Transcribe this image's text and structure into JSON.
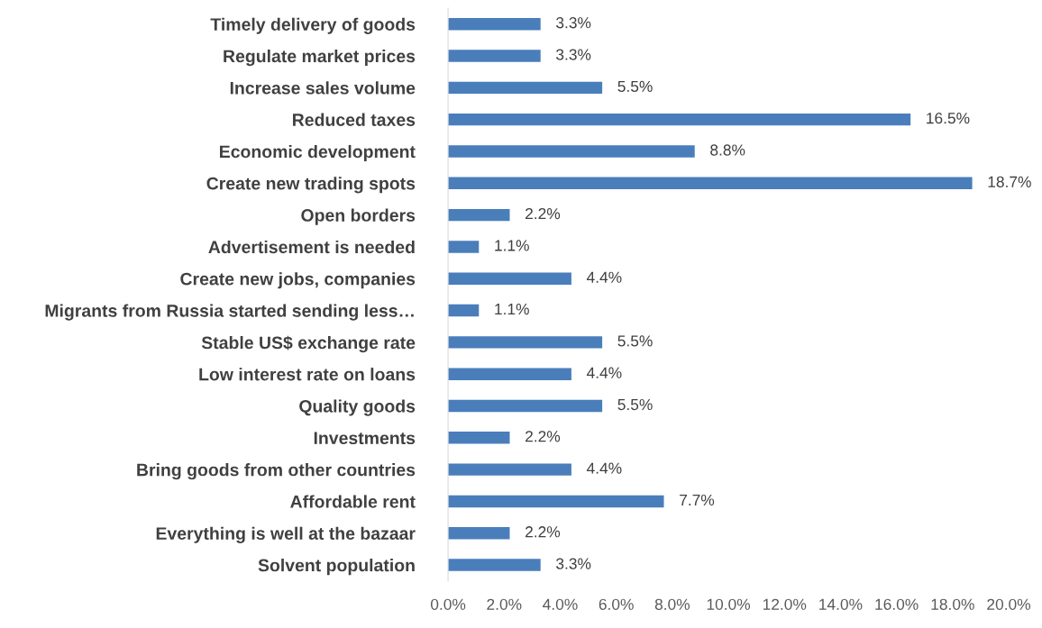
{
  "chart_data": {
    "type": "bar",
    "orientation": "horizontal",
    "categories": [
      "Timely delivery of goods",
      "Regulate market prices",
      "Increase sales volume",
      "Reduced taxes",
      "Economic development",
      "Create new trading spots",
      "Open borders",
      "Advertisement is needed",
      "Create new jobs, companies",
      "Migrants from Russia started sending less…",
      "Stable US$ exchange rate",
      "Low interest rate on loans",
      "Quality goods",
      "Investments",
      "Bring goods from other countries",
      "Affordable rent",
      "Everything is well at the bazaar",
      "Solvent population"
    ],
    "values": [
      3.3,
      3.3,
      5.5,
      16.5,
      8.8,
      18.7,
      2.2,
      1.1,
      4.4,
      1.1,
      5.5,
      4.4,
      5.5,
      2.2,
      4.4,
      7.7,
      2.2,
      3.3
    ],
    "value_labels": [
      "3.3%",
      "3.3%",
      "5.5%",
      "16.5%",
      "8.8%",
      "18.7%",
      "2.2%",
      "1.1%",
      "4.4%",
      "1.1%",
      "5.5%",
      "4.4%",
      "5.5%",
      "2.2%",
      "4.4%",
      "7.7%",
      "2.2%",
      "3.3%"
    ],
    "color": "#4a7ebb",
    "xlim": [
      0,
      20
    ],
    "xticks": [
      {
        "value": 0,
        "label": "0.0%"
      },
      {
        "value": 2,
        "label": "2.0%"
      },
      {
        "value": 4,
        "label": "4.0%"
      },
      {
        "value": 6,
        "label": "6.0%"
      },
      {
        "value": 8,
        "label": "8.0%"
      },
      {
        "value": 10,
        "label": "10.0%"
      },
      {
        "value": 12,
        "label": "12.0%"
      },
      {
        "value": 14,
        "label": "14.0%"
      },
      {
        "value": 16,
        "label": "16.0%"
      },
      {
        "value": 18,
        "label": "18.0%"
      },
      {
        "value": 20,
        "label": "20.0%"
      }
    ],
    "grid": false
  }
}
